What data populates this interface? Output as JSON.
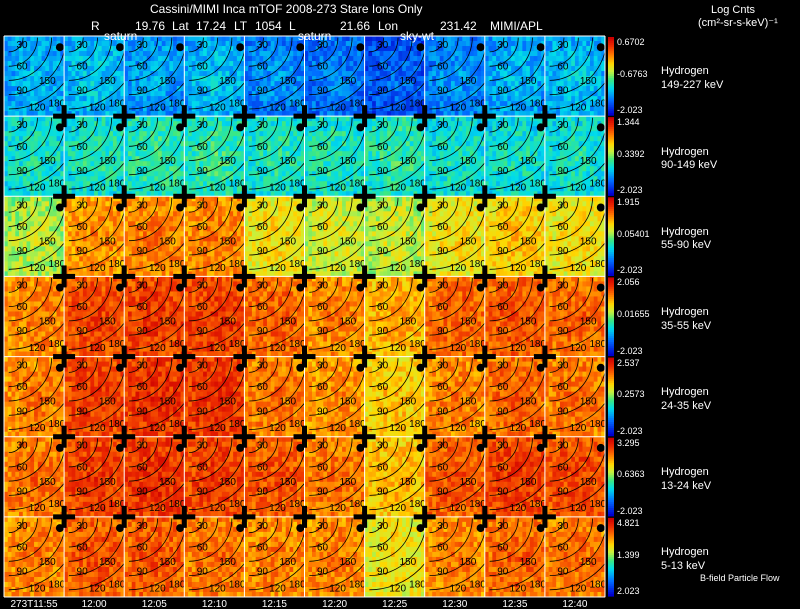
{
  "header": {
    "title": "Cassini/MIMI Inca mTOF  2008-273   Stare    Ions Only",
    "r_label": "R",
    "r_value": "19.76",
    "lat_label": "Lat",
    "lat_value": "17.24",
    "lt_label": "LT",
    "lt_value": "1054",
    "l_label": "L",
    "l_value": "21.66",
    "lon_label": "Lon",
    "lon_value": "231.42",
    "credit": "MIMI/APL"
  },
  "units": {
    "line1": "Log Cnts",
    "line2": "(cm²-sr-s-keV)⁻¹"
  },
  "footer_note": "B-field Particle Flow",
  "frame_labels": [
    "saturn",
    "saturn",
    "sky-wt"
  ],
  "chart_data": {
    "type": "heatmap",
    "description_rows": "energy channels",
    "time_labels": [
      "273T11:55",
      "12:00",
      "12:05",
      "12:10",
      "12:15",
      "12:20",
      "12:25",
      "12:30",
      "12:35",
      "12:40"
    ],
    "contour_labels": [
      "30",
      "60",
      "90",
      "120",
      "150",
      "180"
    ],
    "channels": [
      {
        "species": "Hydrogen",
        "energy": "149-227 keV",
        "cmax": "0.6702",
        "cmid": "-0.6763",
        "cmin": "-2.023",
        "levels": [
          0.3,
          0.33,
          0.28,
          0.32,
          0.25,
          0.22,
          0.18,
          0.25,
          0.3,
          0.32
        ]
      },
      {
        "species": "Hydrogen",
        "energy": "90-149 keV",
        "cmax": "1.344",
        "cmid": "0.3392",
        "cmin": "-2.023",
        "levels": [
          0.4,
          0.42,
          0.44,
          0.44,
          0.42,
          0.42,
          0.44,
          0.4,
          0.4,
          0.4
        ]
      },
      {
        "species": "Hydrogen",
        "energy": "55-90 keV",
        "cmax": "1.915",
        "cmid": "0.05401",
        "cmin": "-2.023",
        "levels": [
          0.58,
          0.78,
          0.8,
          0.8,
          0.66,
          0.62,
          0.6,
          0.66,
          0.7,
          0.66
        ]
      },
      {
        "species": "Hydrogen",
        "energy": "35-55 keV",
        "cmax": "2.056",
        "cmid": "0.01655",
        "cmin": "-2.023",
        "levels": [
          0.8,
          0.88,
          0.9,
          0.9,
          0.84,
          0.8,
          0.74,
          0.84,
          0.86,
          0.84
        ]
      },
      {
        "species": "Hydrogen",
        "energy": "24-35 keV",
        "cmax": "2.537",
        "cmid": "0.2573",
        "cmin": "-2.023",
        "levels": [
          0.8,
          0.9,
          0.92,
          0.92,
          0.82,
          0.78,
          0.7,
          0.8,
          0.84,
          0.82
        ]
      },
      {
        "species": "Hydrogen",
        "energy": "13-24 keV",
        "cmax": "3.295",
        "cmid": "0.6363",
        "cmin": "-2.023",
        "levels": [
          0.82,
          0.9,
          0.92,
          0.9,
          0.86,
          0.82,
          0.72,
          0.86,
          0.9,
          0.88
        ]
      },
      {
        "species": "Hydrogen",
        "energy": "5-13 keV",
        "cmax": "4.821",
        "cmid": "1.399",
        "cmin": "2.023",
        "levels": [
          0.8,
          0.86,
          0.86,
          0.82,
          0.8,
          0.8,
          0.66,
          0.8,
          0.84,
          0.82
        ]
      }
    ]
  }
}
